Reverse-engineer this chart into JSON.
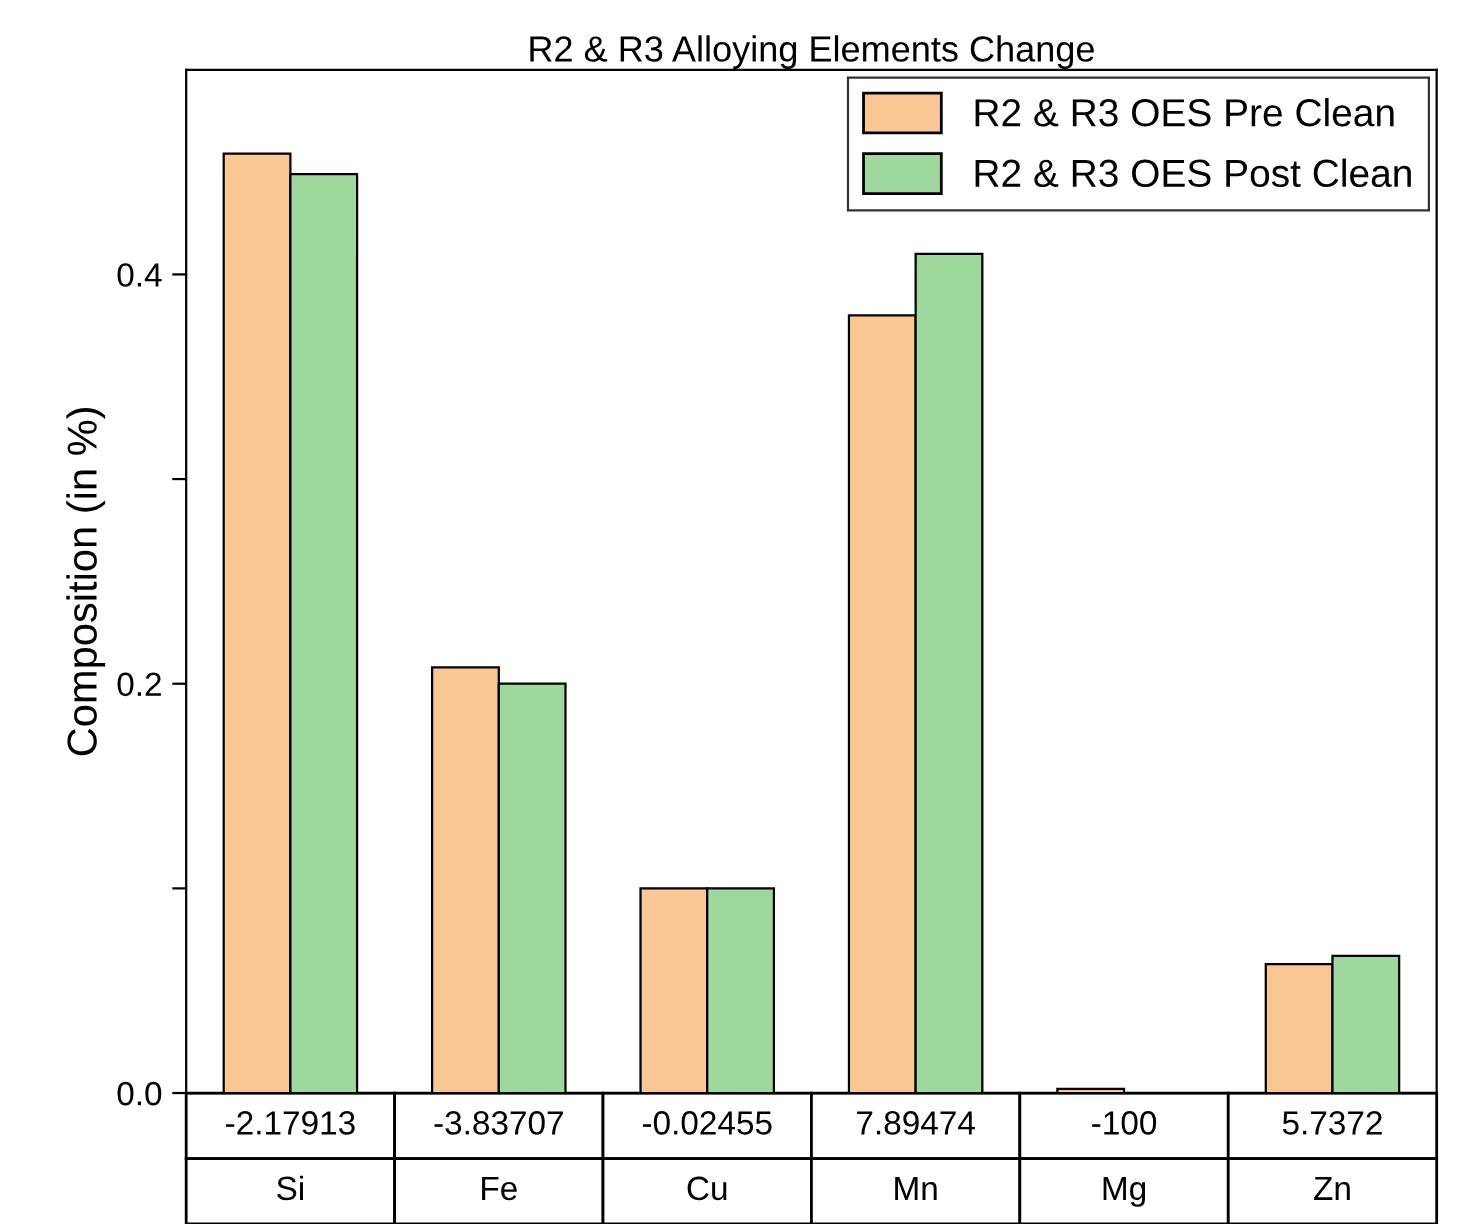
{
  "chart_data": {
    "type": "bar",
    "title": "R2 & R3 Alloying Elements Change",
    "ylabel": "Composition (in %)",
    "categories": [
      "Si",
      "Fe",
      "Cu",
      "Mn",
      "Mg",
      "Zn"
    ],
    "series": [
      {
        "name": "R2 & R3 OES Pre Clean",
        "color": "#f9c794",
        "values": [
          0.459,
          0.208,
          0.1,
          0.38,
          0.002,
          0.063
        ]
      },
      {
        "name": "R2 & R3 OES Post Clean",
        "color": "#9ed89c",
        "values": [
          0.449,
          0.2,
          0.1,
          0.41,
          null,
          0.067
        ]
      }
    ],
    "annotations": [
      "-2.17913",
      "-3.83707",
      "-0.02455",
      "7.89474",
      "-100",
      "5.7372"
    ],
    "ylim": [
      0,
      0.5
    ],
    "yticks": [
      {
        "value": 0.0,
        "label": "0.0"
      },
      {
        "value": 0.1,
        "label": null
      },
      {
        "value": 0.2,
        "label": "0.2"
      },
      {
        "value": 0.3,
        "label": null
      },
      {
        "value": 0.4,
        "label": "0.4"
      }
    ],
    "grid": false,
    "legend": "top right"
  }
}
